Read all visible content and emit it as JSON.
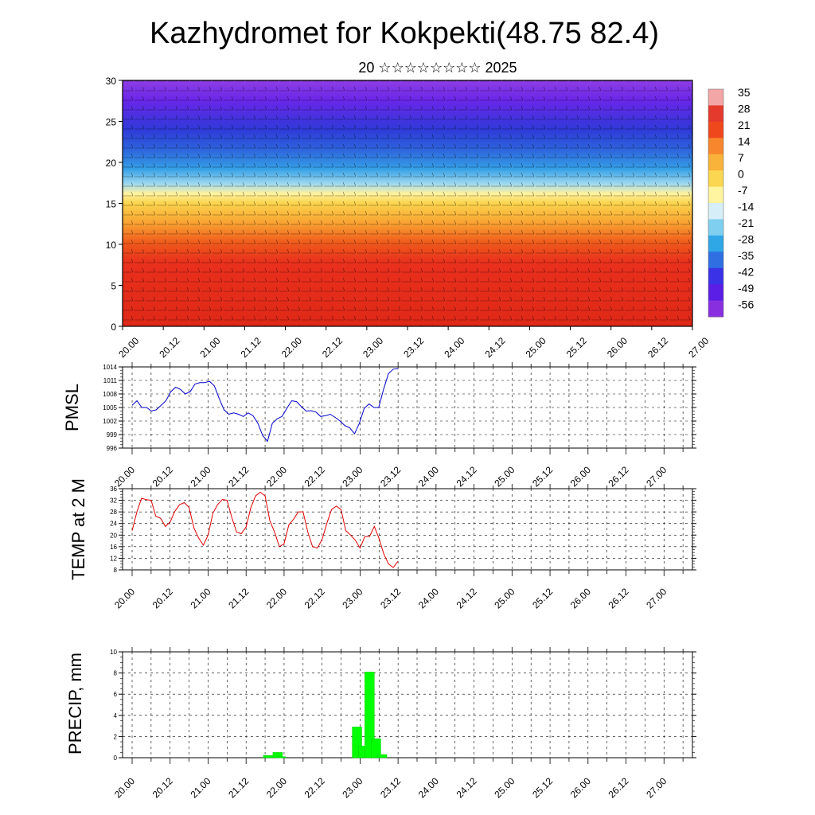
{
  "header": {
    "title": "Kazhydromet for Kokpekti(48.75 82.4)",
    "subtitle": "20 ☆☆☆☆☆☆☆☆ 2025"
  },
  "x_tick_labels": [
    "20.00",
    "20.12",
    "21.00",
    "21.12",
    "22.00",
    "22.12",
    "23.00",
    "23.12",
    "24.00",
    "24.12",
    "25.00",
    "25.12",
    "26.00",
    "26.12",
    "27.00"
  ],
  "chart_data": [
    {
      "type": "heatmap",
      "name": "cross-section",
      "x_range": [
        0,
        7
      ],
      "y_range": [
        0,
        30
      ],
      "y_ticks": [
        0,
        5,
        10,
        15,
        20,
        25,
        30
      ],
      "colorbar_labels": [
        "35",
        "28",
        "21",
        "14",
        "7",
        "0",
        "-7",
        "-14",
        "-21",
        "-28",
        "-35",
        "-42",
        "-49",
        "-56"
      ],
      "colorbar_colors": [
        "#f3a6a6",
        "#e33a2d",
        "#f0481d",
        "#f7862c",
        "#f9b23a",
        "#fbd650",
        "#fff5a0",
        "#d6eef7",
        "#7fd0f0",
        "#2fa6e6",
        "#2f6fe2",
        "#3a32e6",
        "#5a1ee6",
        "#8830e0"
      ]
    },
    {
      "type": "line",
      "name": "pmsl",
      "ylabel": "PMSL",
      "ylim": [
        996,
        1014
      ],
      "y_ticks": [
        996,
        999,
        1002,
        1005,
        1008,
        1011,
        1014
      ],
      "color": "#0000cc",
      "values": [
        1005.5,
        1006.5,
        1005,
        1005,
        1004.2,
        1004.5,
        1005.5,
        1006.5,
        1008.5,
        1009.5,
        1009,
        1008,
        1008.5,
        1010.2,
        1010.5,
        1010.5,
        1010.8,
        1009.8,
        1007,
        1004.5,
        1003.5,
        1003.8,
        1003.5,
        1003,
        1003.8,
        1003.2,
        1001.5,
        998.8,
        997.5,
        1001.5,
        1002.5,
        1003,
        1004.8,
        1006.5,
        1006.3,
        1005.2,
        1004.2,
        1004.3,
        1004,
        1003,
        1003.2,
        1003.5,
        1002.8,
        1002,
        1001,
        1000.5,
        999.2,
        1001.5,
        1004.8,
        1005.8,
        1005,
        1005,
        1009,
        1012.5,
        1013.5,
        1013.6
      ]
    },
    {
      "type": "line",
      "name": "temp2m",
      "ylabel": "TEMP at 2 M",
      "ylim": [
        8,
        36
      ],
      "y_ticks": [
        8,
        12,
        16,
        20,
        24,
        28,
        32,
        36
      ],
      "color": "#e00000",
      "values": [
        21.5,
        28,
        32.7,
        32.2,
        32,
        26.5,
        25.8,
        23,
        24.5,
        28.2,
        30.5,
        31.2,
        29.5,
        22.5,
        19,
        16.5,
        20,
        27.5,
        30.5,
        32.3,
        32,
        26,
        21,
        20.5,
        22.8,
        29.5,
        33.5,
        34.8,
        33.5,
        25,
        21,
        16,
        17,
        23.5,
        25.5,
        28,
        28,
        21,
        16,
        15.5,
        18.5,
        24,
        28.8,
        30,
        28.8,
        21.5,
        20,
        18.2,
        15.5,
        19.5,
        19.5,
        23,
        18.8,
        13.5,
        10,
        8.8,
        11
      ]
    },
    {
      "type": "bar",
      "name": "precip",
      "ylabel": "PRECIP, mm",
      "ylim": [
        0,
        10
      ],
      "y_ticks": [
        0,
        2,
        4,
        6,
        8,
        10
      ],
      "color": "#00ff00",
      "bars": [
        {
          "t": 3.58,
          "v": 0.2
        },
        {
          "t": 3.83,
          "v": 0.5
        },
        {
          "t": 3.92,
          "v": 0.1
        },
        {
          "t": 5.92,
          "v": 2.9
        },
        {
          "t": 6.08,
          "v": 1.1
        },
        {
          "t": 6.25,
          "v": 8.1
        },
        {
          "t": 6.42,
          "v": 1.8
        },
        {
          "t": 6.58,
          "v": 0.3
        }
      ]
    }
  ]
}
